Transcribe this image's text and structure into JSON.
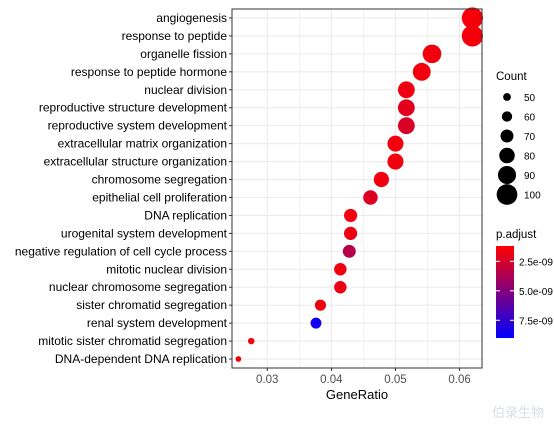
{
  "chart_data": {
    "type": "scatter",
    "xlabel": "GeneRatio",
    "ylabel": "",
    "xlim": [
      0.0245,
      0.0635
    ],
    "x_ticks": [
      0.03,
      0.04,
      0.05,
      0.06
    ],
    "x_tick_labels": [
      "0.03",
      "0.04",
      "0.05",
      "0.06"
    ],
    "grid": true,
    "terms": [
      {
        "term": "angiogenesis",
        "gene_ratio": 0.062,
        "count": 102,
        "p_adjust": 1.5e-09
      },
      {
        "term": "response to peptide",
        "gene_ratio": 0.062,
        "count": 102,
        "p_adjust": 1.5e-09
      },
      {
        "term": "organelle fission",
        "gene_ratio": 0.0557,
        "count": 92,
        "p_adjust": 1.6e-09
      },
      {
        "term": "response to peptide hormone",
        "gene_ratio": 0.0541,
        "count": 89,
        "p_adjust": 1.6e-09
      },
      {
        "term": "nuclear division",
        "gene_ratio": 0.0517,
        "count": 85,
        "p_adjust": 1.7e-09
      },
      {
        "term": "reproductive structure development",
        "gene_ratio": 0.0517,
        "count": 85,
        "p_adjust": 2.1e-09
      },
      {
        "term": "reproductive system development",
        "gene_ratio": 0.0517,
        "count": 85,
        "p_adjust": 2.4e-09
      },
      {
        "term": "extracellular matrix organization",
        "gene_ratio": 0.05,
        "count": 82,
        "p_adjust": 1.6e-09
      },
      {
        "term": "extracellular structure organization",
        "gene_ratio": 0.05,
        "count": 82,
        "p_adjust": 1.6e-09
      },
      {
        "term": "chromosome segregation",
        "gene_ratio": 0.0478,
        "count": 79,
        "p_adjust": 1.6e-09
      },
      {
        "term": "epithelial cell proliferation",
        "gene_ratio": 0.0461,
        "count": 76,
        "p_adjust": 2.2e-09
      },
      {
        "term": "DNA replication",
        "gene_ratio": 0.043,
        "count": 71,
        "p_adjust": 1.6e-09
      },
      {
        "term": "urogenital system development",
        "gene_ratio": 0.043,
        "count": 71,
        "p_adjust": 1.8e-09
      },
      {
        "term": "negative regulation of cell cycle process",
        "gene_ratio": 0.0428,
        "count": 70,
        "p_adjust": 3.4e-09
      },
      {
        "term": "mitotic nuclear division",
        "gene_ratio": 0.0414,
        "count": 68,
        "p_adjust": 1.6e-09
      },
      {
        "term": "nuclear chromosome segregation",
        "gene_ratio": 0.0414,
        "count": 68,
        "p_adjust": 1.8e-09
      },
      {
        "term": "sister chromatid segregation",
        "gene_ratio": 0.0383,
        "count": 63,
        "p_adjust": 1.7e-09
      },
      {
        "term": "renal system development",
        "gene_ratio": 0.0376,
        "count": 62,
        "p_adjust": 8.5e-09
      },
      {
        "term": "mitotic sister chromatid segregation",
        "gene_ratio": 0.0275,
        "count": 45,
        "p_adjust": 1.6e-09
      },
      {
        "term": "DNA-dependent DNA replication",
        "gene_ratio": 0.0255,
        "count": 42,
        "p_adjust": 1.6e-09
      }
    ],
    "size_legend": {
      "title": "Count",
      "values": [
        50,
        60,
        70,
        80,
        90,
        100
      ],
      "labels": [
        "50",
        "60",
        "70",
        "80",
        "90",
        "100"
      ]
    },
    "color_legend": {
      "title": "p.adjust",
      "range": [
        1.2e-09,
        9e-09
      ],
      "ticks": [
        2.5e-09,
        5e-09,
        7.5e-09
      ],
      "tick_labels": [
        "2.5e-09",
        "5.0e-09",
        "7.5e-09"
      ],
      "low_color": "#FF0000",
      "high_color": "#0000FF"
    },
    "panel_background": "#FFFFFF",
    "grid_color": "#EBEBEB",
    "border_color": "#333333"
  },
  "watermark": "伯录生物"
}
